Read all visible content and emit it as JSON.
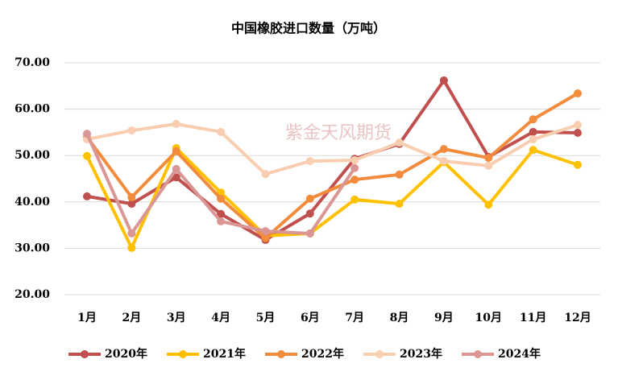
{
  "chart_data": {
    "type": "line",
    "title": "中国橡胶进口数量（万吨）",
    "watermark": "紫金天风期货",
    "categories": [
      "1月",
      "2月",
      "3月",
      "4月",
      "5月",
      "6月",
      "7月",
      "8月",
      "9月",
      "10月",
      "11月",
      "12月"
    ],
    "series": [
      {
        "name": "2020年",
        "color": "#c0504d",
        "values": [
          41.2,
          39.6,
          45.3,
          37.4,
          31.8,
          37.5,
          49.3,
          52.5,
          66.2,
          49.7,
          55.1,
          54.9
        ]
      },
      {
        "name": "2021年",
        "color": "#ffc000",
        "values": [
          49.9,
          30.1,
          51.6,
          42.0,
          32.7,
          33.2,
          40.5,
          39.6,
          48.6,
          39.4,
          51.2,
          48.0
        ]
      },
      {
        "name": "2022年",
        "color": "#f28c3c",
        "values": [
          54.0,
          41.0,
          50.9,
          40.7,
          32.2,
          40.7,
          44.8,
          45.9,
          51.4,
          49.5,
          57.8,
          63.4
        ]
      },
      {
        "name": "2023年",
        "color": "#f9cdb0",
        "values": [
          53.5,
          55.4,
          56.8,
          55.1,
          46.0,
          48.8,
          49.0,
          52.8,
          48.8,
          47.8,
          53.5,
          56.6
        ]
      },
      {
        "name": "2024年",
        "color": "#d99694",
        "values": [
          54.7,
          33.2,
          47.1,
          35.8,
          33.7,
          33.2,
          47.3,
          null,
          null,
          null,
          null,
          null
        ]
      }
    ],
    "ylim": [
      20,
      70
    ],
    "yticks": [
      {
        "value": 20,
        "label": "20.00"
      },
      {
        "value": 30,
        "label": "30.00"
      },
      {
        "value": 40,
        "label": "40.00"
      },
      {
        "value": 50,
        "label": "50.00"
      },
      {
        "value": 60,
        "label": "60.00"
      },
      {
        "value": 70,
        "label": "70.00"
      }
    ],
    "grid": true,
    "legend": "bottom"
  }
}
